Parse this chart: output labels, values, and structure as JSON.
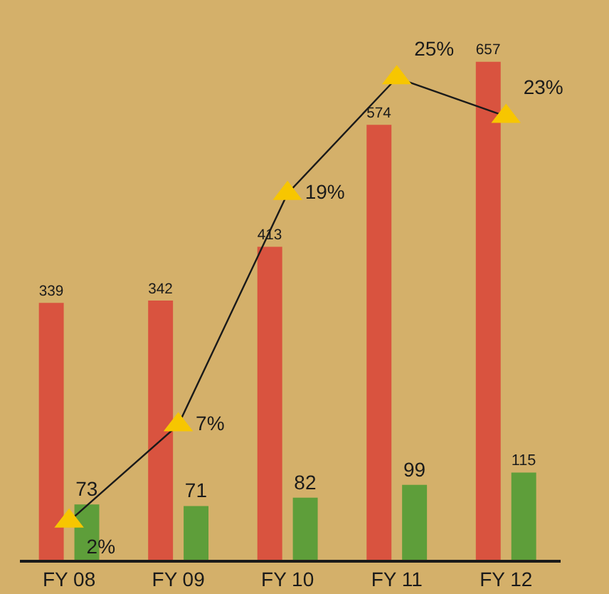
{
  "chart_data": {
    "type": "bar",
    "categories": [
      "FY 08",
      "FY 09",
      "FY 10",
      "FY 11",
      "FY 12"
    ],
    "series": [
      {
        "color": "#d9533f",
        "values": [
          339,
          342,
          413,
          574,
          657
        ]
      },
      {
        "color": "#5e9e3a",
        "values": [
          73,
          71,
          82,
          99,
          115
        ]
      },
      {
        "type": "line",
        "axis": "y2",
        "color": "#1a1a1a",
        "marker": "triangle",
        "values": [
          2,
          7,
          19,
          25,
          23
        ],
        "value_labels": [
          "2%",
          "7%",
          "19%",
          "25%",
          "23%"
        ]
      }
    ],
    "data_labels": true,
    "tick_labels": "x",
    "grid": false,
    "legend": false
  }
}
